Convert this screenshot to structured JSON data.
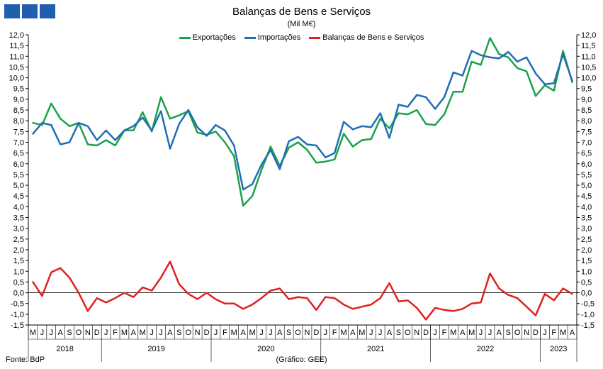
{
  "page": {
    "title": "Balanças de Bens e Serviços",
    "subtitle": "(Mil M€)",
    "source": "Fonte: BdP",
    "credit": "(Gráfico: GEE)",
    "logo_color": "#1f5fae"
  },
  "chart_data": {
    "type": "line",
    "title": "Balanças de Bens e Serviços",
    "subtitle": "(Mil M€)",
    "ylim": [
      -1.5,
      12.0
    ],
    "ytick_step": 0.5,
    "y_decimal_separator": ",",
    "grid": false,
    "legend_position": "top-center",
    "x": [
      "2018-05",
      "2018-06",
      "2018-07",
      "2018-08",
      "2018-09",
      "2018-10",
      "2018-11",
      "2018-12",
      "2019-01",
      "2019-02",
      "2019-03",
      "2019-04",
      "2019-05",
      "2019-06",
      "2019-07",
      "2019-08",
      "2019-09",
      "2019-10",
      "2019-11",
      "2019-12",
      "2020-01",
      "2020-02",
      "2020-03",
      "2020-04",
      "2020-05",
      "2020-06",
      "2020-07",
      "2020-08",
      "2020-09",
      "2020-10",
      "2020-11",
      "2020-12",
      "2021-01",
      "2021-02",
      "2021-03",
      "2021-04",
      "2021-05",
      "2021-06",
      "2021-07",
      "2021-08",
      "2021-09",
      "2021-10",
      "2021-11",
      "2021-12",
      "2022-01",
      "2022-02",
      "2022-03",
      "2022-04",
      "2022-05",
      "2022-06",
      "2022-07",
      "2022-08",
      "2022-09",
      "2022-10",
      "2022-11",
      "2022-12",
      "2023-01",
      "2023-02",
      "2023-03",
      "2023-04"
    ],
    "month_labels": [
      "M",
      "J",
      "J",
      "A",
      "S",
      "O",
      "N",
      "D",
      "J",
      "F",
      "M",
      "A",
      "M",
      "J",
      "J",
      "A",
      "S",
      "O",
      "N",
      "D",
      "J",
      "F",
      "M",
      "A",
      "M",
      "J",
      "J",
      "A",
      "S",
      "O",
      "N",
      "D",
      "J",
      "F",
      "M",
      "A",
      "M",
      "J",
      "J",
      "A",
      "S",
      "O",
      "N",
      "D",
      "J",
      "F",
      "M",
      "A",
      "M",
      "J",
      "J",
      "A",
      "S",
      "O",
      "N",
      "D",
      "J",
      "F",
      "M",
      "A"
    ],
    "years": [
      {
        "label": "2018",
        "start": 0,
        "count": 8
      },
      {
        "label": "2019",
        "start": 8,
        "count": 12
      },
      {
        "label": "2020",
        "start": 20,
        "count": 12
      },
      {
        "label": "2021",
        "start": 32,
        "count": 12
      },
      {
        "label": "2022",
        "start": 44,
        "count": 12
      },
      {
        "label": "2023",
        "start": 56,
        "count": 4
      }
    ],
    "series": [
      {
        "name": "Exportações",
        "color": "#1aa24a",
        "values": [
          7.9,
          7.8,
          8.8,
          8.1,
          7.75,
          7.9,
          6.9,
          6.85,
          7.1,
          6.85,
          7.55,
          7.55,
          8.4,
          7.5,
          9.1,
          8.1,
          8.25,
          8.45,
          7.45,
          7.35,
          7.5,
          7.0,
          6.35,
          4.05,
          4.5,
          5.7,
          6.8,
          5.9,
          6.75,
          7.0,
          6.65,
          6.05,
          6.1,
          6.2,
          7.4,
          6.8,
          7.1,
          7.15,
          8.1,
          7.65,
          8.35,
          8.3,
          8.5,
          7.85,
          7.8,
          8.3,
          9.35,
          9.35,
          10.75,
          10.6,
          11.85,
          11.1,
          10.95,
          10.45,
          10.3,
          9.15,
          9.65,
          9.4,
          11.25,
          9.8
        ]
      },
      {
        "name": "Importações",
        "color": "#1f6db5",
        "values": [
          7.4,
          7.9,
          7.8,
          6.9,
          7.0,
          7.9,
          7.75,
          7.1,
          7.55,
          7.1,
          7.55,
          7.75,
          8.15,
          7.55,
          8.45,
          6.7,
          7.85,
          8.5,
          7.7,
          7.3,
          7.8,
          7.55,
          6.85,
          4.8,
          5.05,
          5.95,
          6.65,
          5.75,
          7.05,
          7.25,
          6.9,
          6.85,
          6.3,
          6.5,
          7.95,
          7.6,
          7.75,
          7.7,
          8.35,
          7.2,
          8.75,
          8.65,
          9.2,
          9.1,
          8.55,
          9.1,
          10.25,
          10.1,
          11.25,
          11.05,
          10.95,
          10.9,
          11.2,
          10.75,
          10.95,
          10.2,
          9.7,
          9.75,
          11.1,
          9.85
        ]
      },
      {
        "name": "Balanças de Bens e Serviços",
        "color": "#e02020",
        "values": [
          0.5,
          -0.15,
          0.95,
          1.15,
          0.7,
          0.0,
          -0.85,
          -0.25,
          -0.45,
          -0.25,
          0.0,
          -0.2,
          0.25,
          0.1,
          0.7,
          1.45,
          0.4,
          -0.05,
          -0.3,
          0.0,
          -0.3,
          -0.5,
          -0.5,
          -0.75,
          -0.55,
          -0.25,
          0.1,
          0.2,
          -0.3,
          -0.2,
          -0.25,
          -0.8,
          -0.2,
          -0.25,
          -0.55,
          -0.75,
          -0.65,
          -0.55,
          -0.25,
          0.45,
          -0.4,
          -0.35,
          -0.7,
          -1.25,
          -0.7,
          -0.8,
          -0.85,
          -0.75,
          -0.5,
          -0.45,
          0.9,
          0.2,
          -0.1,
          -0.25,
          -0.65,
          -1.05,
          -0.05,
          -0.35,
          0.2,
          -0.05
        ]
      }
    ]
  }
}
